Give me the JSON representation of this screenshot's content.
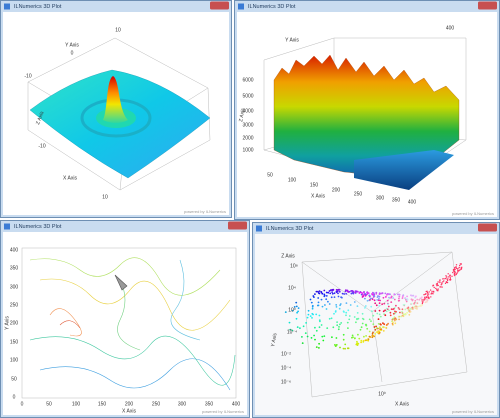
{
  "windows": [
    {
      "title": "ILNumerics 3D Plot",
      "footer": "powered by ILNumerics",
      "labels": [
        "10",
        "Y Axis",
        "0",
        "-10",
        "Z Axis",
        "-10",
        "X Axis",
        "10"
      ]
    },
    {
      "title": "ILNumerics 3D Plot",
      "footer": "powered by ILNumerics",
      "labels": [
        "400",
        "Y Axis",
        "6000",
        "5000",
        "4000",
        "3000",
        "2000",
        "1000",
        "Z Axis",
        "50",
        "100",
        "150",
        "200",
        "250",
        "300",
        "350",
        "400",
        "X Axis"
      ]
    },
    {
      "title": "ILNumerics 3D Plot",
      "footer": "powered by ILNumerics",
      "labels": [
        "400",
        "350",
        "300",
        "250",
        "200",
        "150",
        "100",
        "50",
        "0",
        "0",
        "50",
        "100",
        "150",
        "200",
        "250",
        "300",
        "350",
        "400",
        "Y Axis",
        "X Axis"
      ]
    },
    {
      "title": "ILNumerics 3D Plot",
      "footer": "powered by ILNumerics",
      "labels": [
        "Z Axis",
        "10⁸",
        "10⁴",
        "10⁰",
        "10⁻⁴",
        "Y Axis",
        "10⁻²",
        "10⁻⁴",
        "10⁻⁶",
        "10⁰",
        "X Axis"
      ]
    }
  ]
}
